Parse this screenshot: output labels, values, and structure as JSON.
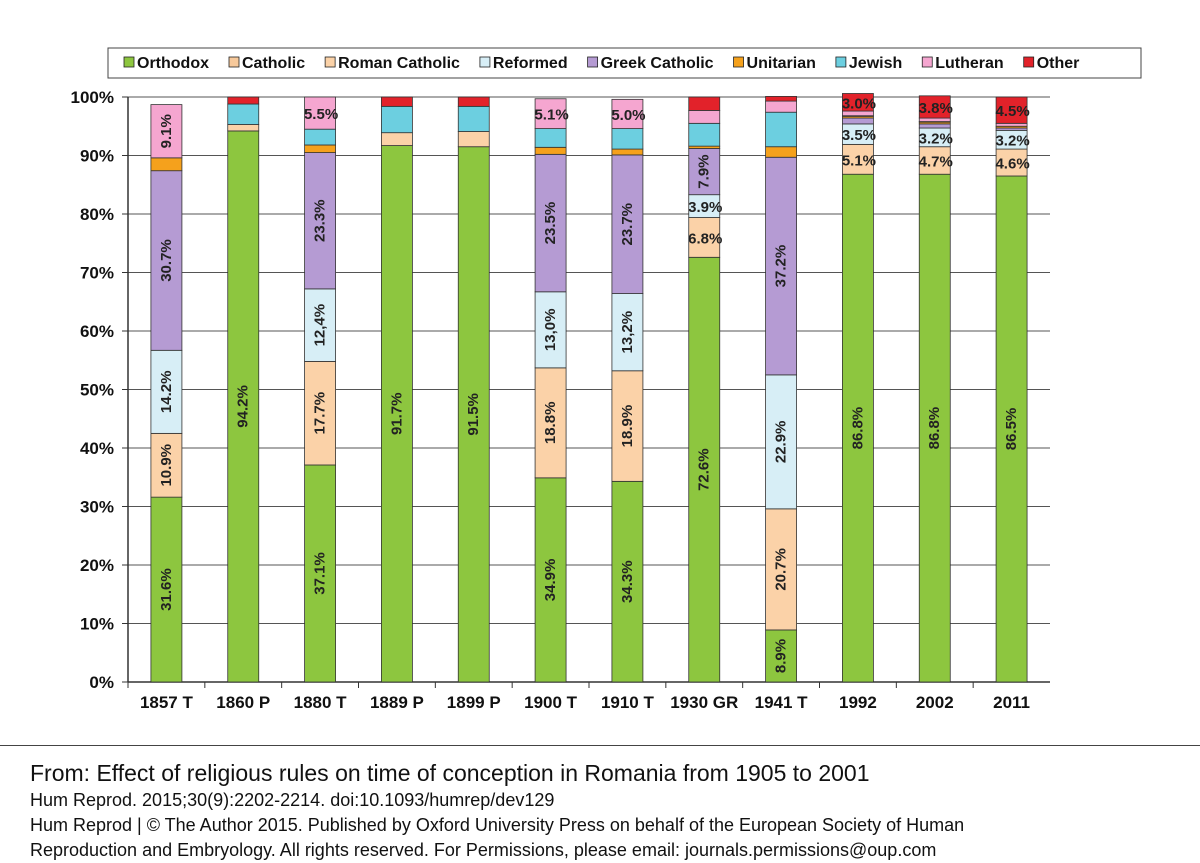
{
  "chart_data": {
    "type": "bar",
    "stacked": true,
    "percent_stacked": true,
    "categories": [
      "1857 T",
      "1860 P",
      "1880 T",
      "1889 P",
      "1899 P",
      "1900 T",
      "1910 T",
      "1930 GR",
      "1941 T",
      "1992",
      "2002",
      "2011"
    ],
    "ylim": [
      0,
      100
    ],
    "yticks": [
      "0%",
      "10%",
      "20%",
      "30%",
      "40%",
      "50%",
      "60%",
      "70%",
      "80%",
      "90%",
      "100%"
    ],
    "grid": true,
    "legend_position": "top",
    "series": [
      {
        "name": "Orthodox",
        "color": "#8dc63f",
        "values": [
          31.6,
          94.2,
          37.1,
          91.7,
          91.5,
          34.9,
          34.3,
          72.6,
          8.9,
          86.8,
          86.8,
          86.5
        ],
        "labels": [
          "31.6%",
          "94.2%",
          "37.1%",
          "91.7%",
          "91.5%",
          "34.9%",
          "34.3%",
          "72.6%",
          "8.9%",
          "86.8%",
          "86.8%",
          "86.5%"
        ]
      },
      {
        "name": "Catholic",
        "color": "#f7c99b",
        "values": [
          0,
          0,
          0,
          0,
          0,
          0,
          0,
          0,
          0,
          0,
          0,
          0
        ],
        "labels": [
          "",
          "",
          "",
          "",
          "",
          "",
          "",
          "",
          "",
          "",
          "",
          ""
        ]
      },
      {
        "name": "Roman Catholic",
        "color": "#fbd2a8",
        "values": [
          10.9,
          1.1,
          17.7,
          2.2,
          2.6,
          18.8,
          18.9,
          6.8,
          20.7,
          5.1,
          4.7,
          4.6
        ],
        "labels": [
          "10.9%",
          "",
          "17.7%",
          "",
          "",
          "18.8%",
          "18.9%",
          "6.8%",
          "20.7%",
          "5.1%",
          "4.7%",
          "4.6%"
        ]
      },
      {
        "name": "Reformed",
        "color": "#d7eef6",
        "values": [
          14.2,
          0,
          12.4,
          0,
          0,
          13.0,
          13.2,
          3.9,
          22.9,
          3.5,
          3.2,
          3.2
        ],
        "labels": [
          "14.2%",
          "",
          "12,4%",
          "",
          "",
          "13,0%",
          "13,2%",
          "3.9%",
          "22.9%",
          "3.5%",
          "3.2%",
          "3.2%"
        ]
      },
      {
        "name": "Greek Catholic",
        "color": "#b59bd3",
        "values": [
          30.7,
          0,
          23.3,
          0,
          0,
          23.5,
          23.7,
          7.9,
          37.2,
          1.0,
          0.7,
          0.4
        ],
        "labels": [
          "30.7%",
          "",
          "23.3%",
          "",
          "",
          "23.5%",
          "23.7%",
          "7.9%",
          "37.2%",
          "",
          "",
          ""
        ]
      },
      {
        "name": "Unitarian",
        "color": "#f5a11c",
        "values": [
          2.2,
          0,
          1.3,
          0,
          0,
          1.2,
          1.0,
          0.4,
          1.8,
          0.3,
          0.3,
          0.3
        ],
        "labels": [
          "",
          "",
          "",
          "",
          "",
          "",
          "",
          "",
          "",
          "",
          "",
          ""
        ]
      },
      {
        "name": "Jewish",
        "color": "#6ccfe0",
        "values": [
          0,
          3.5,
          2.7,
          4.5,
          4.3,
          3.2,
          3.5,
          3.9,
          5.9,
          0.1,
          0.1,
          0
        ],
        "labels": [
          "",
          "",
          "",
          "",
          "",
          "",
          "",
          "",
          "",
          "",
          "",
          ""
        ]
      },
      {
        "name": "Lutheran",
        "color": "#f5a6d0",
        "values": [
          9.1,
          0,
          5.5,
          0,
          0,
          5.1,
          5.0,
          2.2,
          1.9,
          0.8,
          0.6,
          0.5
        ],
        "labels": [
          "9.1%",
          "",
          "5.5%",
          "",
          "",
          "5.1%",
          "5.0%",
          "",
          "",
          "",
          "",
          ""
        ]
      },
      {
        "name": "Other",
        "color": "#e2222a",
        "values": [
          0,
          1.2,
          0,
          1.6,
          1.6,
          0,
          0,
          2.3,
          0.8,
          3.0,
          3.8,
          4.5
        ],
        "labels": [
          "",
          "",
          "",
          "",
          "",
          "",
          "",
          "",
          "",
          "3.0%",
          "3.8%",
          "4.5%"
        ]
      }
    ]
  },
  "caption": {
    "from": "From: Effect of religious rules on time of conception in Romania from 1905 to 2001",
    "citation": "Hum Reprod. 2015;30(9):2202-2214. doi:10.1093/humrep/dev129",
    "copyright_line1": "Hum Reprod | © The Author 2015. Published by Oxford University Press on behalf of the European Society of Human",
    "copyright_line2": "Reproduction and Embryology. All rights reserved. For Permissions, please email: journals.permissions@oup.com"
  }
}
